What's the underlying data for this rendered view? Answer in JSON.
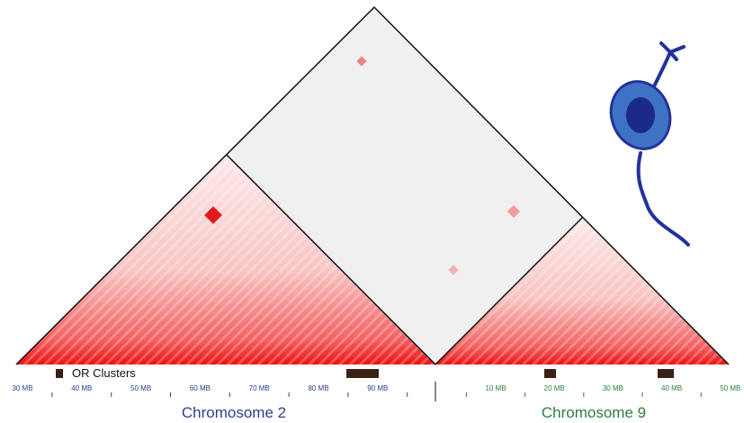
{
  "labels": {
    "legend": "OR Clusters",
    "chromosome_2": "Chromosome 2",
    "chromosome_9": "Chromosome 9"
  },
  "chromosome_2_ticks": [
    "30 MB",
    "40 MB",
    "50 MB",
    "60 MB",
    "70 MB",
    "80 MB",
    "90 MB"
  ],
  "chromosome_9_ticks": [
    "10 MB",
    "20 MB",
    "30 MB",
    "40 MB",
    "50 MB"
  ]
}
